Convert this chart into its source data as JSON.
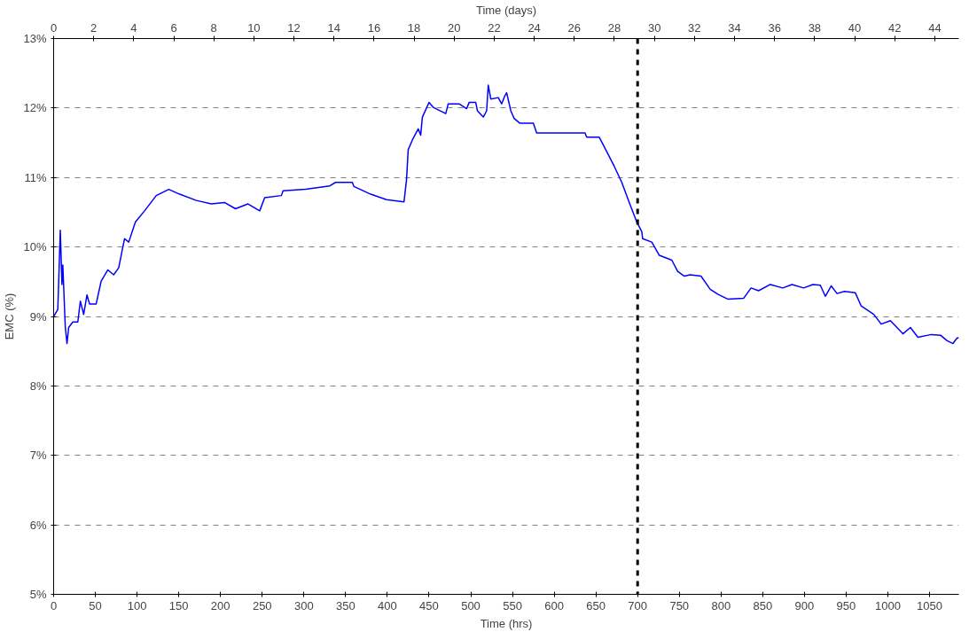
{
  "chart_data": {
    "type": "line",
    "xlabel": "Time (hrs)",
    "ylabel": "EMC (%)",
    "x2label": "Time (days)",
    "xlim": [
      0,
      1085
    ],
    "xticks": [
      0,
      50,
      100,
      150,
      200,
      250,
      300,
      350,
      400,
      450,
      500,
      550,
      600,
      650,
      700,
      750,
      800,
      850,
      900,
      950,
      1000,
      1050
    ],
    "x2lim": [
      0,
      45.2
    ],
    "x2ticks": [
      0,
      2,
      4,
      6,
      8,
      10,
      12,
      14,
      16,
      18,
      20,
      22,
      24,
      26,
      28,
      30,
      32,
      34,
      36,
      38,
      40,
      42,
      44
    ],
    "ylim": [
      5,
      13
    ],
    "yticks": [
      {
        "value": 5,
        "label": "5%"
      },
      {
        "value": 6,
        "label": "6%"
      },
      {
        "value": 7,
        "label": "7%"
      },
      {
        "value": 8,
        "label": "8%"
      },
      {
        "value": 9,
        "label": "9%"
      },
      {
        "value": 10,
        "label": "10%"
      },
      {
        "value": 11,
        "label": "11%"
      },
      {
        "value": 12,
        "label": "12%"
      },
      {
        "value": 13,
        "label": "13%"
      }
    ],
    "grid": "y",
    "marker": "none",
    "line_style": "solid",
    "ref_lines": [
      {
        "axis": "x",
        "value": 700,
        "color": "#000000",
        "line_style": "dashed"
      }
    ],
    "series": [
      {
        "color": "#0000ff",
        "x": [
          0,
          5,
          6,
          8,
          10,
          11,
          14,
          16,
          18,
          23,
          29,
          32,
          36,
          40,
          43,
          51,
          57,
          65,
          72,
          78,
          85,
          90,
          98,
          109,
          123,
          138,
          151,
          171,
          189,
          205,
          218,
          233,
          247,
          253,
          273,
          275,
          302,
          331,
          338,
          358,
          360,
          380,
          399,
          420,
          423,
          425,
          430,
          437,
          440,
          442,
          450,
          455,
          470,
          473,
          486,
          495,
          498,
          506,
          508,
          515,
          519,
          521,
          524,
          533,
          537,
          541,
          543,
          548,
          552,
          559,
          575,
          579,
          637,
          639,
          654,
          661,
          672,
          681,
          690,
          699,
          705,
          706,
          717,
          726,
          741,
          748,
          756,
          763,
          776,
          787,
          796,
          808,
          827,
          836,
          845,
          859,
          874,
          885,
          899,
          910,
          919,
          925,
          932,
          939,
          948,
          961,
          968,
          983,
          992,
          1003,
          1018,
          1027,
          1036,
          1052,
          1063,
          1071,
          1078,
          1083,
          1085
        ],
        "values": [
          9.0,
          9.1,
          9.48,
          10.24,
          9.46,
          9.74,
          8.84,
          8.61,
          8.84,
          8.92,
          8.92,
          9.22,
          9.03,
          9.31,
          9.18,
          9.18,
          9.51,
          9.67,
          9.6,
          9.7,
          10.12,
          10.07,
          10.36,
          10.52,
          10.74,
          10.83,
          10.76,
          10.67,
          10.62,
          10.64,
          10.55,
          10.62,
          10.52,
          10.71,
          10.74,
          10.81,
          10.83,
          10.88,
          10.93,
          10.93,
          10.87,
          10.76,
          10.68,
          10.65,
          10.97,
          11.4,
          11.54,
          11.7,
          11.61,
          11.87,
          12.08,
          12.01,
          11.92,
          12.06,
          12.06,
          11.99,
          12.08,
          12.08,
          11.96,
          11.87,
          11.96,
          12.33,
          12.13,
          12.15,
          12.06,
          12.18,
          12.22,
          11.96,
          11.85,
          11.78,
          11.78,
          11.64,
          11.64,
          11.58,
          11.58,
          11.42,
          11.16,
          10.93,
          10.64,
          10.36,
          10.22,
          10.12,
          10.07,
          9.88,
          9.81,
          9.65,
          9.58,
          9.6,
          9.58,
          9.39,
          9.32,
          9.25,
          9.26,
          9.41,
          9.37,
          9.46,
          9.41,
          9.46,
          9.41,
          9.46,
          9.45,
          9.29,
          9.44,
          9.33,
          9.36,
          9.34,
          9.15,
          9.03,
          8.89,
          8.94,
          8.75,
          8.84,
          8.7,
          8.74,
          8.73,
          8.65,
          8.61,
          8.69,
          8.69
        ]
      }
    ]
  }
}
